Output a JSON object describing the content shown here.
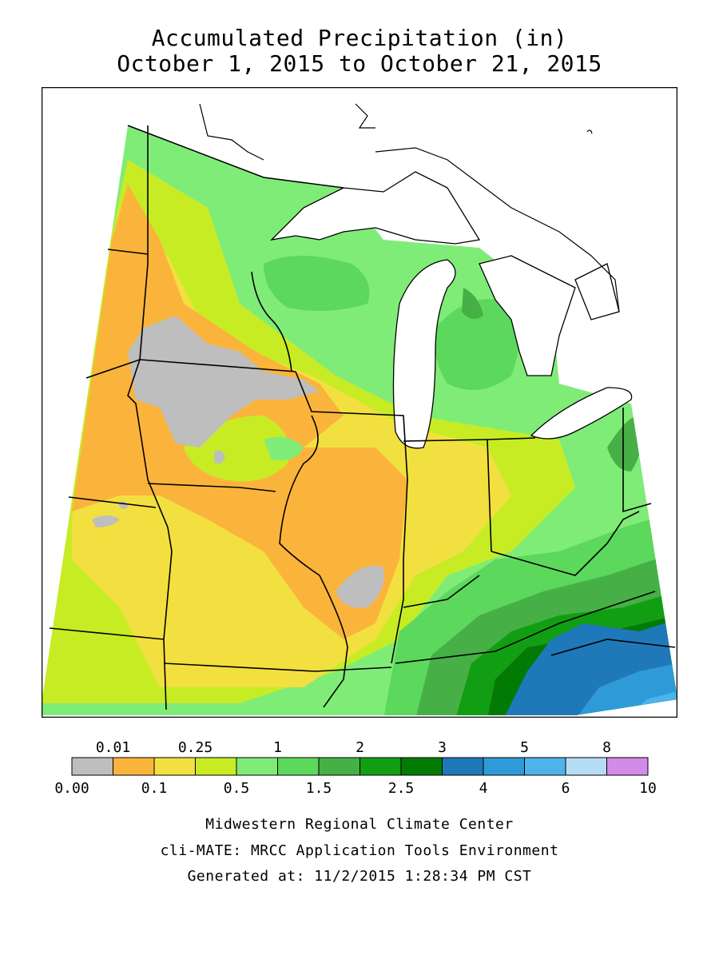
{
  "title": {
    "line1": "Accumulated Precipitation (in)",
    "line2": "October 1, 2015 to October 21, 2015"
  },
  "legend": {
    "top_labels": [
      "0.01",
      "0.25",
      "1",
      "2",
      "3",
      "5",
      "8"
    ],
    "bottom_labels": [
      "0.00",
      "0.1",
      "0.5",
      "1.5",
      "2.5",
      "4",
      "6",
      "10"
    ],
    "colors": [
      "#bebebe",
      "#fbb43b",
      "#f2e040",
      "#c8ec24",
      "#80ec78",
      "#5cd85c",
      "#46b046",
      "#129e12",
      "#037a03",
      "#1f78b8",
      "#2e9bd8",
      "#4db3ea",
      "#b4dcf5",
      "#d38ae8"
    ]
  },
  "footer": {
    "line1": "Midwestern Regional Climate Center",
    "line2": "cli-MATE: MRCC Application Tools Environment",
    "line3": "Generated at: 11/2/2015 1:28:34 PM CST"
  }
}
